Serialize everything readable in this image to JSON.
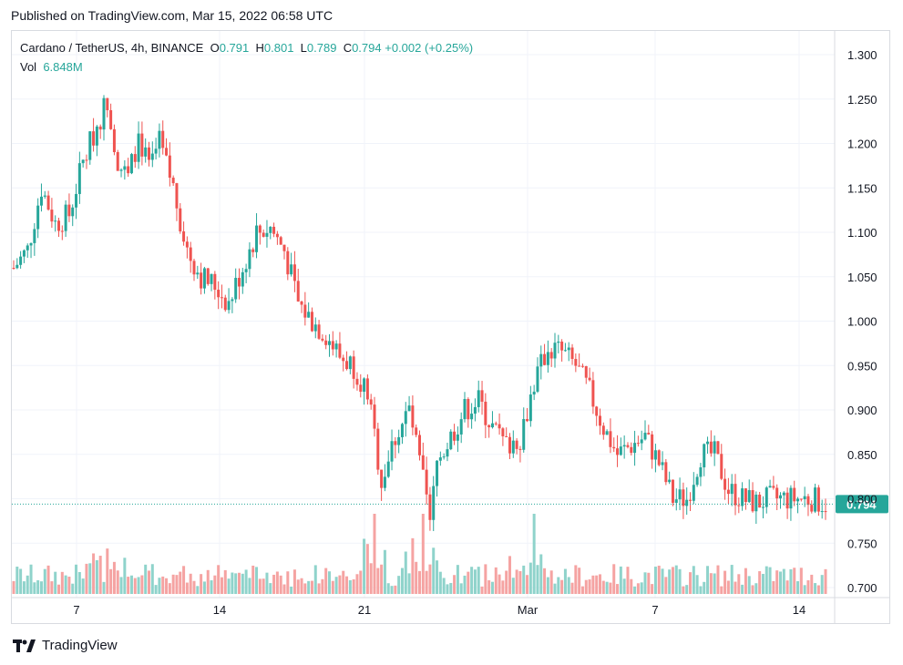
{
  "header": {
    "published": "Published on TradingView.com, Mar 15, 2022 06:58 UTC"
  },
  "legend": {
    "symbol": "Cardano / TetherUS, 4h, BINANCE",
    "o_label": "O",
    "o": "0.791",
    "h_label": "H",
    "h": "0.801",
    "l_label": "L",
    "l": "0.789",
    "c_label": "C",
    "c": "0.794",
    "change": "+0.002 (+0.25%)",
    "vol_label": "Vol",
    "vol": "6.848M"
  },
  "brand": {
    "name": "TradingView"
  },
  "colors": {
    "up": "#26a69a",
    "down": "#ef5350",
    "vol_up": "#8fd3cb",
    "vol_down": "#f5a3a2",
    "grid": "#f0f3fa",
    "last_price": "#26a69a"
  },
  "chart_data": {
    "type": "candlestick",
    "y_ticks": [
      "1.300",
      "1.250",
      "1.200",
      "1.150",
      "1.100",
      "1.050",
      "1.000",
      "0.950",
      "0.900",
      "0.850",
      "0.800",
      "0.750",
      "0.700"
    ],
    "ylim": [
      0.7,
      1.3
    ],
    "x_ticks": [
      "7",
      "14",
      "21",
      "Mar",
      "7",
      "14"
    ],
    "last_price": 0.794,
    "last_price_label": "0.794",
    "close_path": [
      [
        0,
        1.06
      ],
      [
        4,
        1.08
      ],
      [
        8,
        1.15
      ],
      [
        12,
        1.11
      ],
      [
        16,
        1.12
      ],
      [
        20,
        1.18
      ],
      [
        24,
        1.22
      ],
      [
        27,
        1.25
      ],
      [
        30,
        1.18
      ],
      [
        33,
        1.16
      ],
      [
        36,
        1.21
      ],
      [
        39,
        1.17
      ],
      [
        42,
        1.2
      ],
      [
        46,
        1.15
      ],
      [
        50,
        1.08
      ],
      [
        54,
        1.05
      ],
      [
        58,
        1.04
      ],
      [
        62,
        1.02
      ],
      [
        66,
        1.06
      ],
      [
        70,
        1.1
      ],
      [
        74,
        1.105
      ],
      [
        78,
        1.08
      ],
      [
        82,
        1.02
      ],
      [
        86,
        1.0
      ],
      [
        90,
        0.985
      ],
      [
        94,
        0.96
      ],
      [
        98,
        0.95
      ],
      [
        102,
        0.92
      ],
      [
        106,
        0.82
      ],
      [
        110,
        0.87
      ],
      [
        114,
        0.9
      ],
      [
        118,
        0.82
      ],
      [
        120,
        0.77
      ],
      [
        122,
        0.84
      ],
      [
        126,
        0.87
      ],
      [
        130,
        0.9
      ],
      [
        134,
        0.91
      ],
      [
        138,
        0.88
      ],
      [
        142,
        0.86
      ],
      [
        146,
        0.87
      ],
      [
        150,
        0.93
      ],
      [
        154,
        0.97
      ],
      [
        158,
        0.965
      ],
      [
        162,
        0.95
      ],
      [
        166,
        0.92
      ],
      [
        170,
        0.88
      ],
      [
        174,
        0.85
      ],
      [
        178,
        0.86
      ],
      [
        182,
        0.87
      ],
      [
        186,
        0.84
      ],
      [
        190,
        0.8
      ],
      [
        194,
        0.8
      ],
      [
        198,
        0.85
      ],
      [
        202,
        0.85
      ],
      [
        206,
        0.81
      ],
      [
        210,
        0.8
      ],
      [
        214,
        0.795
      ],
      [
        218,
        0.8
      ],
      [
        222,
        0.8
      ],
      [
        226,
        0.8
      ],
      [
        230,
        0.8
      ],
      [
        234,
        0.794
      ]
    ],
    "volume_scale": "relative"
  }
}
